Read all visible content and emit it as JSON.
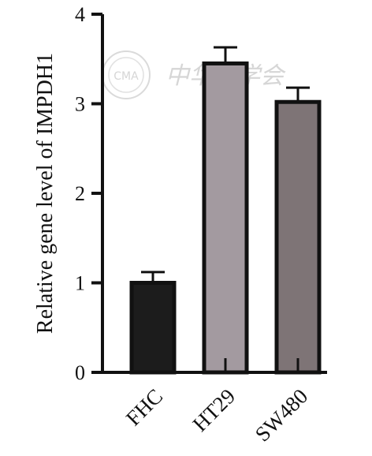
{
  "chart_data": {
    "type": "bar",
    "categories": [
      "FHC",
      "HT29",
      "SW480"
    ],
    "values": [
      1.0,
      3.45,
      3.02
    ],
    "errors": [
      0.12,
      0.18,
      0.16
    ],
    "ylabel": "Relative gene level of IMPDH1",
    "xlabel": "",
    "title": "",
    "ylim": [
      0,
      4
    ],
    "yticks": [
      0,
      1,
      2,
      3,
      4
    ],
    "tick_labels": [
      "0",
      "1",
      "2",
      "3",
      "4"
    ],
    "bar_colors": [
      "#1c1c1c",
      "#a39aa0",
      "#7e7476"
    ],
    "edge_color": "#111111",
    "grid": false,
    "legend": "none"
  },
  "watermark": {
    "text": "中华医学会",
    "seal_text": "CMA"
  }
}
